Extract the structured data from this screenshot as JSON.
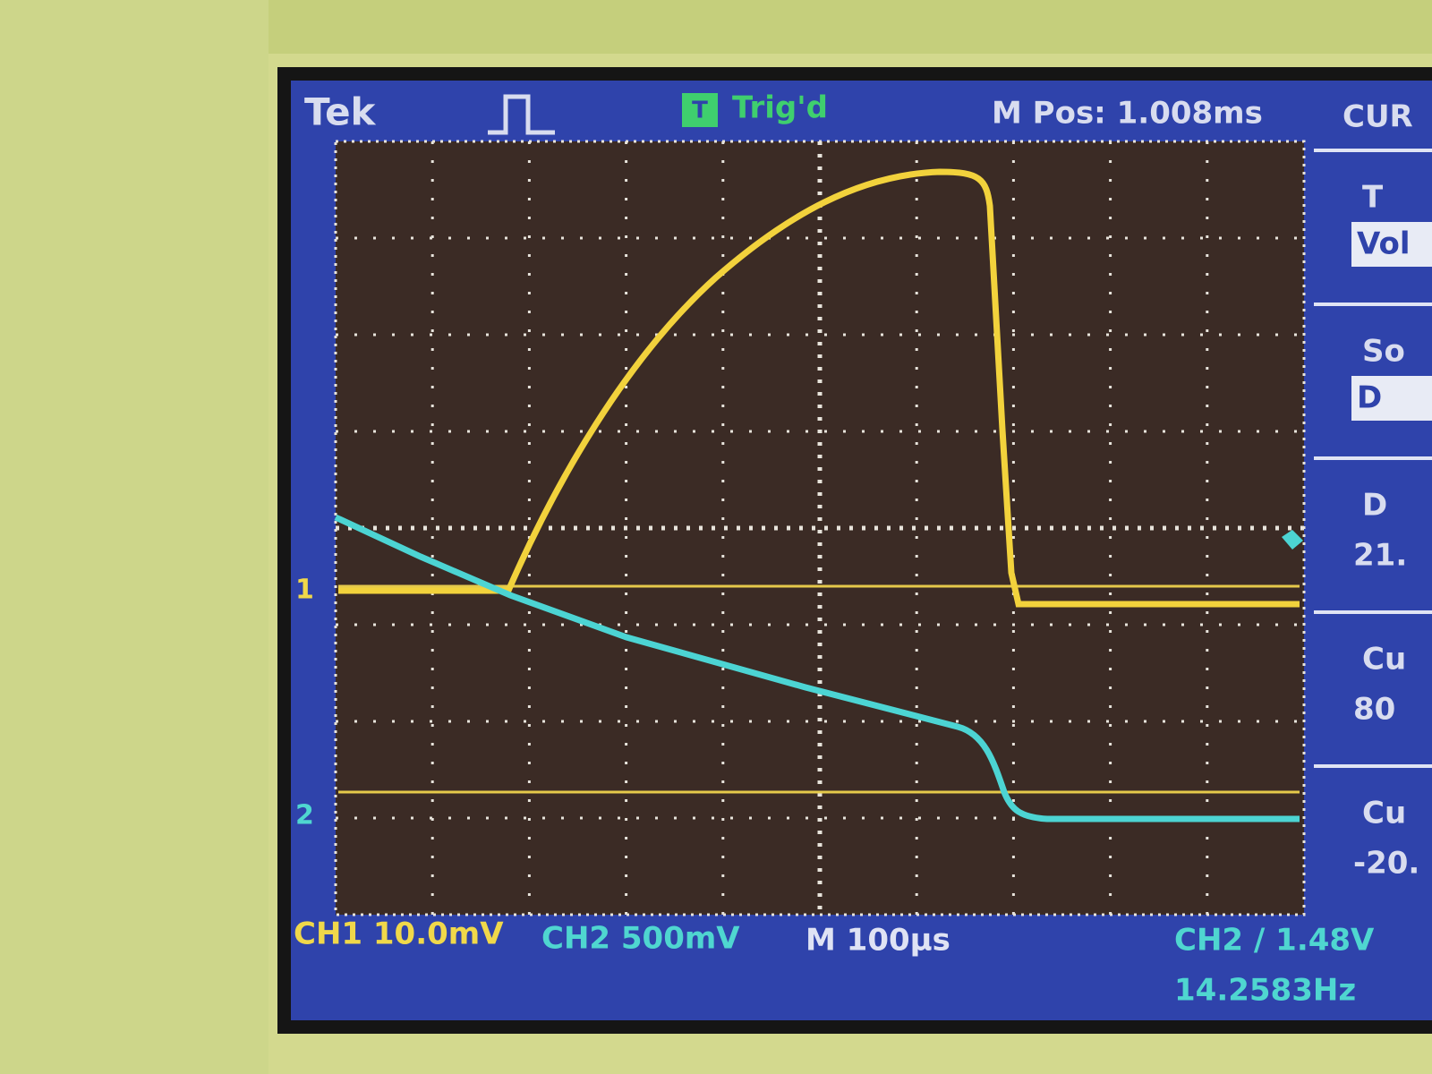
{
  "header": {
    "brand": "Tek",
    "trigger_icon": "T",
    "trigger_status": "Trig'd",
    "position": "M Pos: 1.008ms",
    "menu_title": "CUR"
  },
  "channel_markers": [
    "1",
    "2"
  ],
  "side_menu": [
    {
      "label": "T",
      "value": "Vol"
    },
    {
      "label": "So",
      "value": "D"
    },
    {
      "label": "D",
      "value": "21."
    },
    {
      "label": "Cu",
      "value": "80"
    },
    {
      "label": "Cu",
      "value": "-20."
    }
  ],
  "footer": {
    "ch1": "CH1 10.0mV",
    "ch2": "CH2 500mV",
    "timebase": "M 100µs",
    "trigger": "CH2 / 1.48V",
    "frequency": "14.2583Hz"
  }
}
